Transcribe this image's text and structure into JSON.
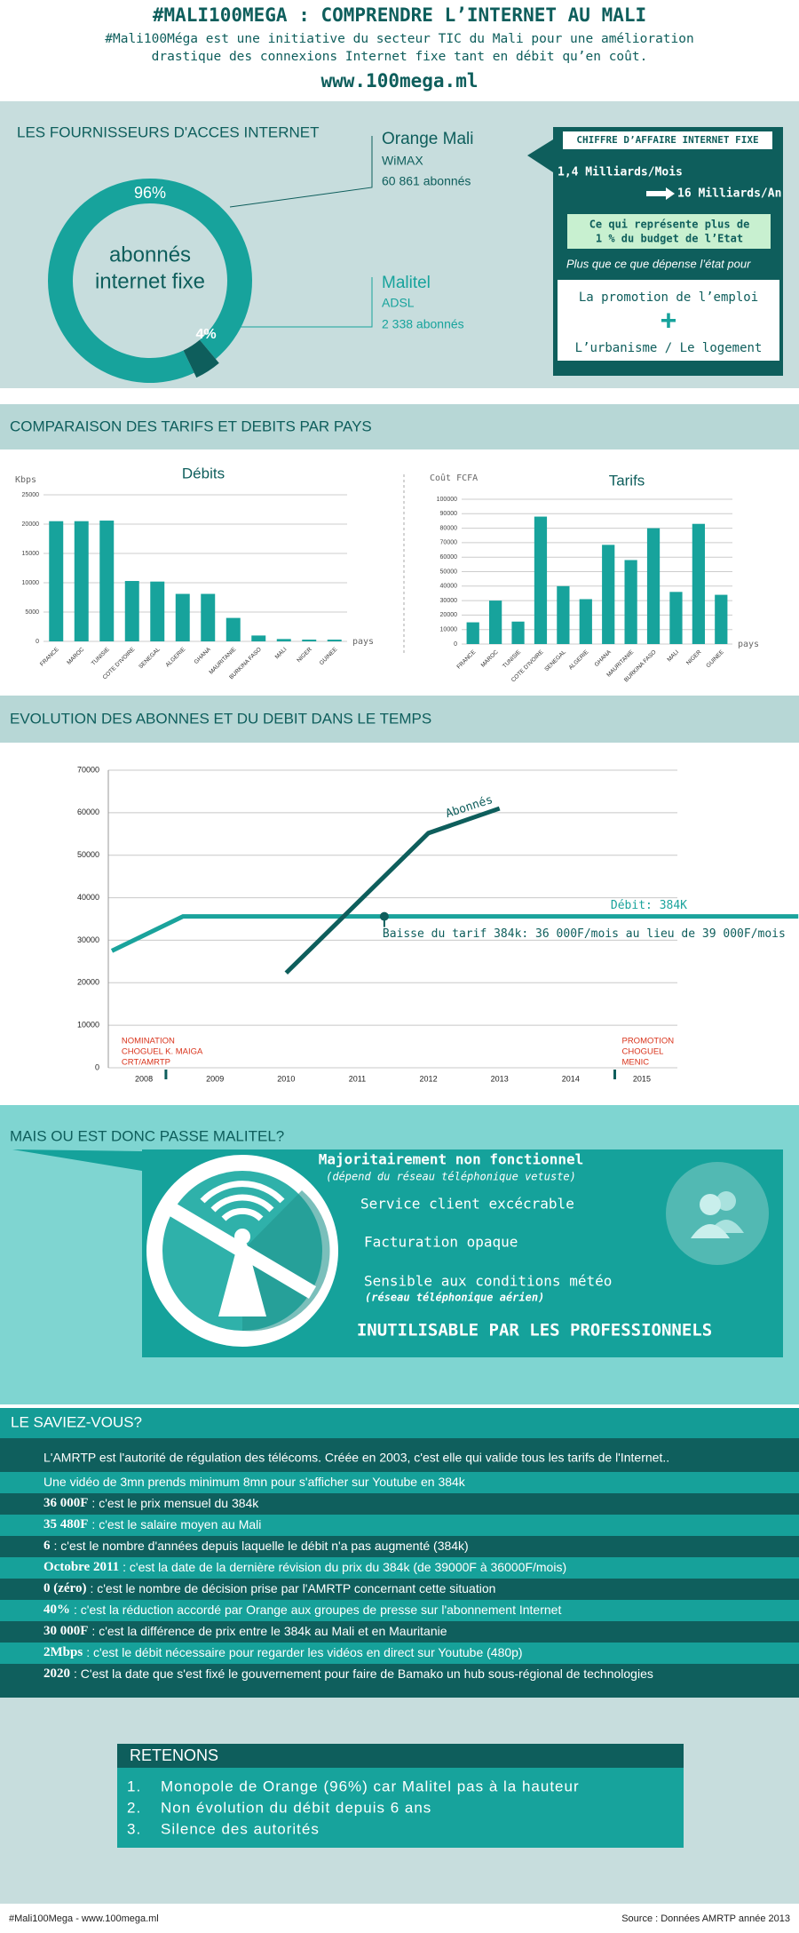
{
  "header": {
    "title": "#MALI100MEGA : COMPRENDRE L’INTERNET AU MALI",
    "subtitle_lines": [
      "#Mali100Méga est une initiative du secteur TIC du Mali pour une amélioration",
      "drastique des connexions Internet fixe tant en débit qu’en coût."
    ],
    "url": "www.100mega.ml"
  },
  "providers": {
    "title": "LES FOURNISSEURS D'ACCES INTERNET",
    "operators": [
      {
        "tech": "WiMAX",
        "subscribers": "60 861 abonnés"
      },
      {
        "tech": "ADSL",
        "subscribers": "2 338 abonnés"
      }
    ],
    "revenue": {
      "title": "CHIFFRE D’AFFAIRE INTERNET FIXE",
      "monthly": "1,4 Milliards/Mois",
      "yearly": "16 Milliards/An",
      "budget_lines": [
        "Ce qui représente plus de",
        "1 % du budget de l’Etat"
      ],
      "compare": "Plus que ce que dépense l’état pour",
      "items": [
        "La promotion de l’emploi",
        "L’urbanisme / Le logement"
      ],
      "plus": "+"
    }
  },
  "comparison_title": "COMPARAISON DES TARIFS ET DEBITS PAR PAYS",
  "evolution_title": "EVOLUTION DES ABONNES ET DU DEBIT DANS LE TEMPS",
  "chart_data": [
    {
      "type": "pie",
      "donut": true,
      "center_lines": [
        "abonnés",
        "internet fixe"
      ],
      "categories": [
        "Orange Mali",
        "Malitel"
      ],
      "values": [
        96,
        4
      ],
      "value_labels": [
        "96%",
        "4%"
      ],
      "colors": [
        "#17a39c",
        "#0e5e5c"
      ]
    },
    {
      "type": "bar",
      "title": "Débits",
      "ylabel": "Kbps",
      "xlabel": "pays",
      "categories": [
        "FRANCE",
        "MAROC",
        "TUNISIE",
        "COTE D'IVOIRE",
        "SENEGAL",
        "ALGERIE",
        "GHANA",
        "MAURITANIE",
        "BURKINA FASO",
        "MALI",
        "NIGER",
        "GUINEE"
      ],
      "values": [
        20500,
        20500,
        20600,
        10300,
        10200,
        8100,
        8100,
        4000,
        1000,
        400,
        300,
        300
      ],
      "color": "#17a39c",
      "ylim": [
        0,
        25000
      ],
      "yticks": [
        0,
        5000,
        10000,
        15000,
        20000,
        25000
      ],
      "grid": true
    },
    {
      "type": "bar",
      "title": "Tarifs",
      "ylabel": "Coût FCFA",
      "xlabel": "pays",
      "categories": [
        "FRANCE",
        "MAROC",
        "TUNISIE",
        "COTE D'IVOIRE",
        "SENEGAL",
        "ALGERIE",
        "GHANA",
        "MAURITANIE",
        "BURKINA FASO",
        "MALI",
        "NIGER",
        "GUINEE"
      ],
      "values": [
        15000,
        30000,
        15500,
        88000,
        40000,
        31000,
        68500,
        58000,
        80000,
        36000,
        83000,
        34000
      ],
      "color": "#17a39c",
      "ylim": [
        0,
        100000
      ],
      "yticks": [
        0,
        10000,
        20000,
        30000,
        40000,
        50000,
        60000,
        70000,
        80000,
        90000,
        100000
      ],
      "grid": true
    },
    {
      "type": "line",
      "xlim": [
        2007.5,
        2015.5
      ],
      "xticks": [
        2008,
        2009,
        2010,
        2011,
        2012,
        2013,
        2014,
        2015
      ],
      "ylim": [
        0,
        70000
      ],
      "yticks": [
        0,
        10000,
        20000,
        30000,
        40000,
        50000,
        60000,
        70000
      ],
      "grid": true,
      "series": [
        {
          "name": "Débit: 384K",
          "color": "#1aa39c",
          "x": [
            2007.55,
            2008.55,
            2017.2
          ],
          "values": [
            27500,
            35600,
            35600
          ]
        },
        {
          "name": "Abonnés",
          "color": "#0e5e5c",
          "x": [
            2010,
            2012,
            2013
          ],
          "values": [
            22300,
            55200,
            61000
          ]
        }
      ],
      "annotations": [
        {
          "text": "Baisse du tarif 384k: 36 000F/mois au lieu de 39 000F/mois",
          "x": 2011.38,
          "y": 35600
        }
      ],
      "events": [
        {
          "lines": [
            "NOMINATION",
            "CHOGUEL K. MAIGA",
            "CRT/AMRTP"
          ],
          "x": 2008.31
        },
        {
          "lines": [
            "PROMOTION",
            "CHOGUEL",
            "MENIC"
          ],
          "x": 2014.62
        }
      ]
    }
  ],
  "malitel": {
    "title": "MAIS OU EST DONC PASSE MALITEL?",
    "headline": "Majoritairement non fonctionnel",
    "headline_note": "(dépend du réseau téléphonique vetuste)",
    "points": [
      "Service client excécrable",
      "Facturation opaque",
      "Sensible aux conditions météo"
    ],
    "points_note": "(réseau téléphonique aérien)",
    "conclusion": "INUTILISABLE PAR LES PROFESSIONNELS"
  },
  "facts": {
    "title": "LE SAVIEZ-VOUS?",
    "rows": [
      {
        "text": "L'AMRTP est l'autorité de régulation des télécoms. Créée en 2003, c'est elle qui valide tous les tarifs de l'Internet.."
      },
      {
        "text": "Une vidéo de 3mn prends minimum 8mn pour s'afficher sur Youtube en 384k"
      },
      {
        "bold": "36 000F",
        "text": ": c'est le prix mensuel du 384k"
      },
      {
        "bold": "35 480F",
        "text": ": c'est le salaire moyen au Mali"
      },
      {
        "bold": "6",
        "text": ": c'est le nombre d'années depuis laquelle le débit n'a pas augmenté (384k)"
      },
      {
        "bold": "Octobre 2011",
        "text": ": c'est la date de la dernière révision du prix du 384k (de 39000F à 36000F/mois)"
      },
      {
        "bold": "0 (zéro)",
        "text": ": c'est le nombre de décision prise par l'AMRTP concernant cette situation"
      },
      {
        "bold": "40%",
        "text": ": c'est la réduction accordé par Orange aux groupes de presse sur l'abonnement Internet"
      },
      {
        "bold": "30 000F",
        "text": ": c'est la différence de prix entre le 384k au Mali et en Mauritanie"
      },
      {
        "bold": "2Mbps",
        "text": ": c'est le débit nécessaire pour regarder les vidéos en direct sur Youtube (480p)"
      },
      {
        "bold": "2020",
        "text": ": C'est la date que s'est fixé le gouvernement pour faire de Bamako un hub sous-régional de technologies"
      }
    ]
  },
  "summary": {
    "title": "RETENONS",
    "items": [
      {
        "num": "1.",
        "text": "Monopole de Orange (96%) car Malitel pas à la hauteur"
      },
      {
        "num": "2.",
        "text": "Non évolution du débit depuis 6 ans"
      },
      {
        "num": "3.",
        "text": "Silence des autorités"
      }
    ]
  },
  "footer": {
    "left": "#Mali100Mega - www.100mega.ml",
    "right": "Source : Données AMRTP année 2013"
  }
}
